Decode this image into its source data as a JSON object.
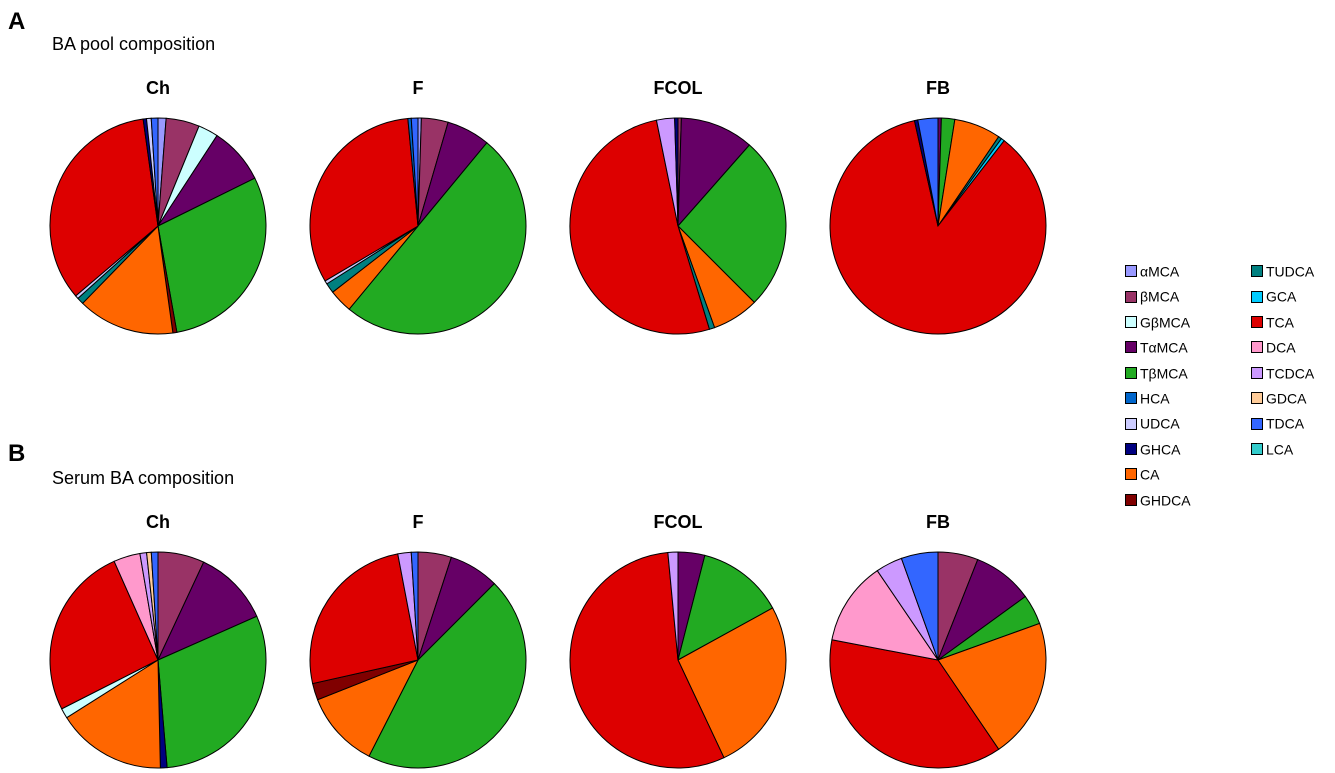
{
  "panels": [
    {
      "letter": "A",
      "title": "BA pool composition"
    },
    {
      "letter": "B",
      "title": "Serum BA composition"
    }
  ],
  "legend": [
    {
      "key": "aMCA",
      "label": "αMCA",
      "color": "#9999ff"
    },
    {
      "key": "bMCA",
      "label": "βMCA",
      "color": "#993366"
    },
    {
      "key": "GbMCA",
      "label": "GβMCA",
      "color": "#ccffff"
    },
    {
      "key": "TaMCA",
      "label": "TαMCA",
      "color": "#660066"
    },
    {
      "key": "TbMCA",
      "label": "TβMCA",
      "color": "#22aa22"
    },
    {
      "key": "HCA",
      "label": "HCA",
      "color": "#0066cc"
    },
    {
      "key": "UDCA",
      "label": "UDCA",
      "color": "#ccccff"
    },
    {
      "key": "GHCA",
      "label": "GHCA",
      "color": "#000080"
    },
    {
      "key": "CA",
      "label": "CA",
      "color": "#ff6600"
    },
    {
      "key": "GHDCA",
      "label": "GHDCA",
      "color": "#800000"
    },
    {
      "key": "TUDCA",
      "label": "TUDCA",
      "color": "#008080"
    },
    {
      "key": "GCA",
      "label": "GCA",
      "color": "#00ccff"
    },
    {
      "key": "TCA",
      "label": "TCA",
      "color": "#dd0000"
    },
    {
      "key": "DCA",
      "label": "DCA",
      "color": "#ff99cc"
    },
    {
      "key": "TCDCA",
      "label": "TCDCA",
      "color": "#cc99ff"
    },
    {
      "key": "GDCA",
      "label": "GDCA",
      "color": "#ffcc99"
    },
    {
      "key": "TDCA",
      "label": "TDCA",
      "color": "#3366ff"
    },
    {
      "key": "LCA",
      "label": "LCA",
      "color": "#33cccc"
    }
  ],
  "chart_data": [
    {
      "type": "pie",
      "panel": "A",
      "title": "Ch",
      "slices": [
        {
          "key": "aMCA",
          "value": 1.2
        },
        {
          "key": "bMCA",
          "value": 5.0
        },
        {
          "key": "GbMCA",
          "value": 3.0
        },
        {
          "key": "TaMCA",
          "value": 8.5
        },
        {
          "key": "TbMCA",
          "value": 29.5
        },
        {
          "key": "GHDCA",
          "value": 0.6
        },
        {
          "key": "CA",
          "value": 14.5
        },
        {
          "key": "TUDCA",
          "value": 1.0
        },
        {
          "key": "UDCA",
          "value": 0.5
        },
        {
          "key": "TCA",
          "value": 34.0
        },
        {
          "key": "GHCA",
          "value": 0.5
        },
        {
          "key": "UDCA",
          "value": 0.7
        },
        {
          "key": "TDCA",
          "value": 1.0
        }
      ]
    },
    {
      "type": "pie",
      "panel": "A",
      "title": "F",
      "slices": [
        {
          "key": "aMCA",
          "value": 0.5
        },
        {
          "key": "bMCA",
          "value": 4.0
        },
        {
          "key": "TaMCA",
          "value": 6.5
        },
        {
          "key": "TbMCA",
          "value": 50.0
        },
        {
          "key": "CA",
          "value": 3.5
        },
        {
          "key": "TUDCA",
          "value": 1.5
        },
        {
          "key": "UDCA",
          "value": 0.5
        },
        {
          "key": "TCA",
          "value": 32.0
        },
        {
          "key": "HCA",
          "value": 0.5
        },
        {
          "key": "TDCA",
          "value": 1.0
        }
      ]
    },
    {
      "type": "pie",
      "panel": "A",
      "title": "FCOL",
      "slices": [
        {
          "key": "bMCA",
          "value": 0.5
        },
        {
          "key": "TaMCA",
          "value": 11.0
        },
        {
          "key": "TbMCA",
          "value": 26.0
        },
        {
          "key": "CA",
          "value": 7.0
        },
        {
          "key": "TUDCA",
          "value": 0.8
        },
        {
          "key": "TCA",
          "value": 51.5
        },
        {
          "key": "TCDCA",
          "value": 2.7
        },
        {
          "key": "GHCA",
          "value": 0.5
        }
      ]
    },
    {
      "type": "pie",
      "panel": "A",
      "title": "FB",
      "slices": [
        {
          "key": "TaMCA",
          "value": 0.5
        },
        {
          "key": "TbMCA",
          "value": 2.0
        },
        {
          "key": "CA",
          "value": 7.0
        },
        {
          "key": "TUDCA",
          "value": 0.5
        },
        {
          "key": "GCA",
          "value": 0.5
        },
        {
          "key": "TCA",
          "value": 86.0
        },
        {
          "key": "GHCA",
          "value": 0.5
        },
        {
          "key": "TDCA",
          "value": 3.0
        }
      ]
    },
    {
      "type": "pie",
      "panel": "B",
      "title": "Ch",
      "slices": [
        {
          "key": "bMCA",
          "value": 7.0
        },
        {
          "key": "TaMCA",
          "value": 11.5
        },
        {
          "key": "TbMCA",
          "value": 30.5
        },
        {
          "key": "GHCA",
          "value": 1.0
        },
        {
          "key": "CA",
          "value": 16.5
        },
        {
          "key": "GbMCA",
          "value": 1.5
        },
        {
          "key": "TCA",
          "value": 26.0
        },
        {
          "key": "DCA",
          "value": 4.0
        },
        {
          "key": "TCDCA",
          "value": 1.0
        },
        {
          "key": "GDCA",
          "value": 0.7
        },
        {
          "key": "TDCA",
          "value": 1.0
        }
      ]
    },
    {
      "type": "pie",
      "panel": "B",
      "title": "F",
      "slices": [
        {
          "key": "bMCA",
          "value": 5.0
        },
        {
          "key": "TaMCA",
          "value": 7.5
        },
        {
          "key": "TbMCA",
          "value": 45.0
        },
        {
          "key": "CA",
          "value": 11.5
        },
        {
          "key": "GHDCA",
          "value": 2.5
        },
        {
          "key": "TCA",
          "value": 25.5
        },
        {
          "key": "TCDCA",
          "value": 2.0
        },
        {
          "key": "TDCA",
          "value": 1.0
        }
      ]
    },
    {
      "type": "pie",
      "panel": "B",
      "title": "FCOL",
      "slices": [
        {
          "key": "TaMCA",
          "value": 4.0
        },
        {
          "key": "TbMCA",
          "value": 13.0
        },
        {
          "key": "CA",
          "value": 26.0
        },
        {
          "key": "TCA",
          "value": 55.5
        },
        {
          "key": "TCDCA",
          "value": 1.5
        }
      ]
    },
    {
      "type": "pie",
      "panel": "B",
      "title": "FB",
      "slices": [
        {
          "key": "bMCA",
          "value": 6.0
        },
        {
          "key": "TaMCA",
          "value": 9.0
        },
        {
          "key": "TbMCA",
          "value": 4.5
        },
        {
          "key": "CA",
          "value": 21.0
        },
        {
          "key": "TCA",
          "value": 37.5
        },
        {
          "key": "DCA",
          "value": 12.5
        },
        {
          "key": "TCDCA",
          "value": 4.0
        },
        {
          "key": "TDCA",
          "value": 5.5
        }
      ]
    }
  ]
}
